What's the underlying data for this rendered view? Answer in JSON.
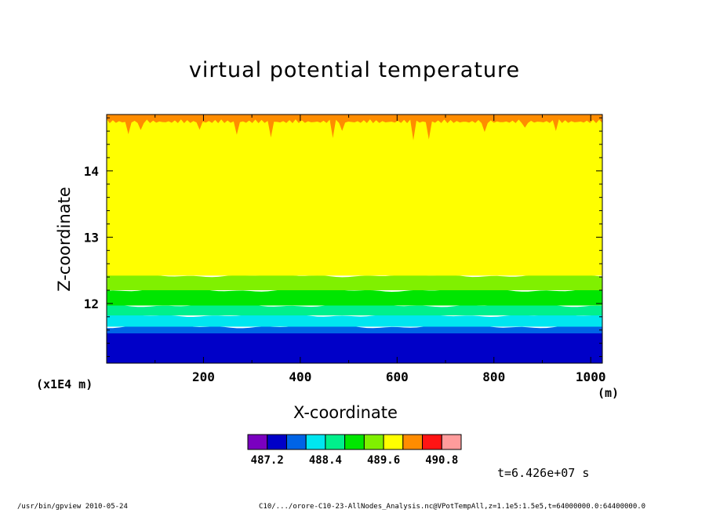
{
  "chart_data": {
    "type": "heatmap",
    "title": "virtual potential temperature",
    "xlabel": "X-coordinate",
    "ylabel": "Z-coordinate",
    "x_scale_note": "(x1E4 m)",
    "x_unit": "(m)",
    "xlim": [
      0,
      1024
    ],
    "ylim": [
      11.1,
      14.85
    ],
    "x_ticks": [
      200,
      400,
      600,
      800,
      1000
    ],
    "y_ticks": [
      12,
      13,
      14
    ],
    "colorbar": {
      "colors": [
        "#7a00c0",
        "#0000c8",
        "#0064e6",
        "#00e6f0",
        "#00f08c",
        "#00e600",
        "#80f000",
        "#ffff00",
        "#ff8c00",
        "#ff1414",
        "#ff9c9c"
      ],
      "levels": [
        487.2,
        487.6,
        488.0,
        488.4,
        488.8,
        489.2,
        489.6,
        490.0,
        490.4,
        490.8
      ],
      "tick_labels": [
        "487.2",
        "488.4",
        "489.6",
        "490.8"
      ]
    },
    "bands_z": [
      {
        "color": "#0000c8",
        "z0": 11.1,
        "z1": 11.55
      },
      {
        "color": "#0064e6",
        "z0": 11.55,
        "z1": 11.65
      },
      {
        "color": "#00e6f0",
        "z0": 11.65,
        "z1": 11.82
      },
      {
        "color": "#00f08c",
        "z0": 11.82,
        "z1": 11.97
      },
      {
        "color": "#00e600",
        "z0": 11.97,
        "z1": 12.2
      },
      {
        "color": "#80f000",
        "z0": 12.2,
        "z1": 12.42
      },
      {
        "color": "#ffff00",
        "z0": 12.42,
        "z1": 14.8
      },
      {
        "color": "#ff8c00",
        "z0": 14.8,
        "z1": 14.85
      }
    ],
    "time_label": "t=6.426e+07 s"
  },
  "footer": {
    "left": "/usr/bin/gpview   2010-05-24",
    "right": "C10/.../orore-C10-23-AllNodes_Analysis.nc@VPotTempAll,z=1.1e5:1.5e5,t=64000000.0:64400000.0"
  }
}
